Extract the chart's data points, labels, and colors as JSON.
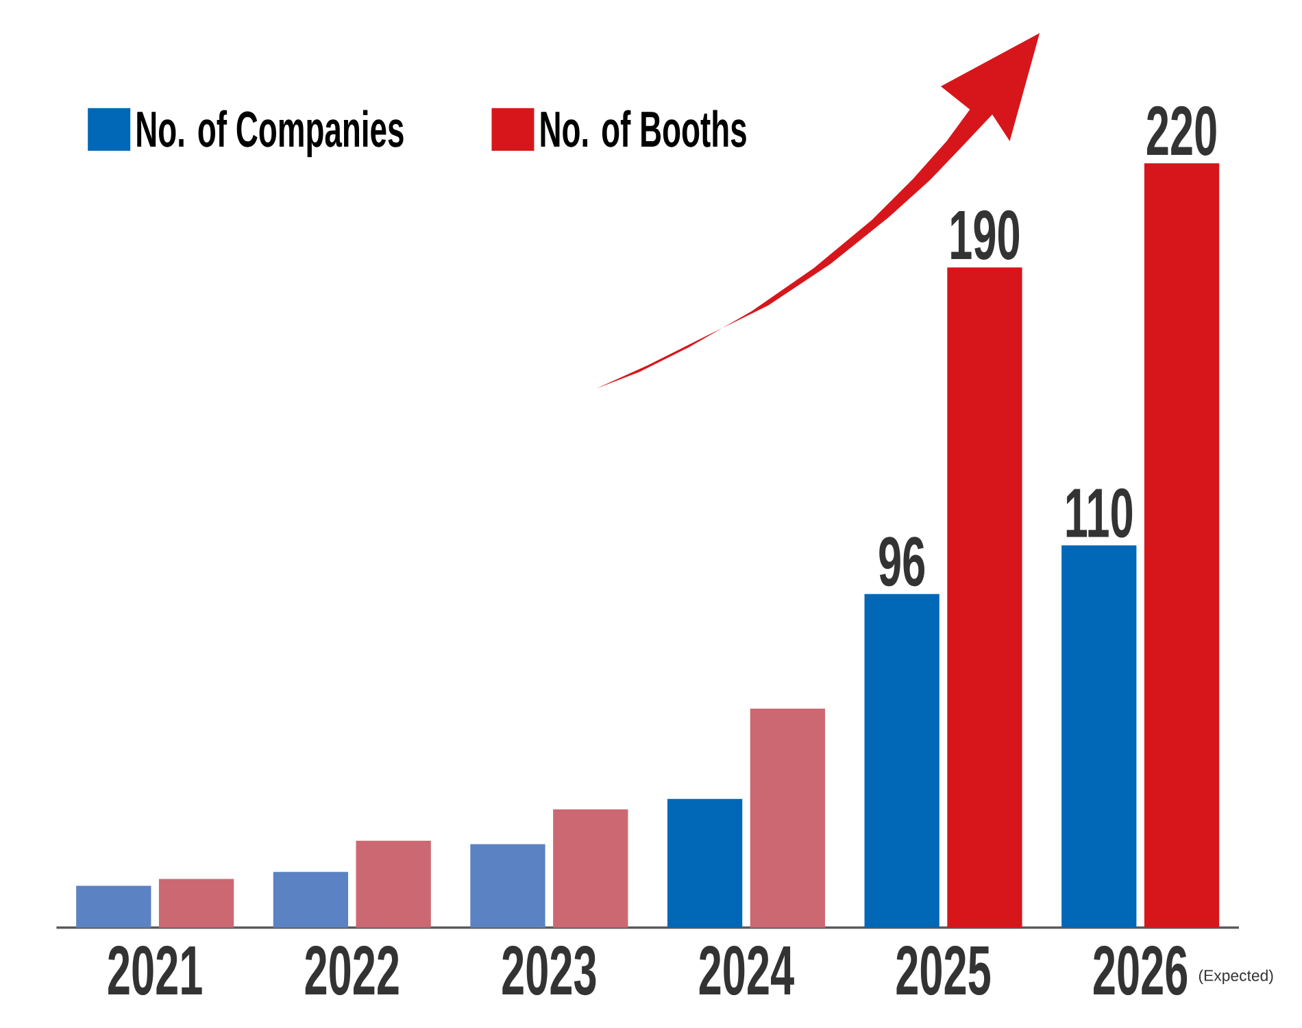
{
  "chart_data": {
    "type": "bar",
    "categories": [
      "2021",
      "2022",
      "2023",
      "2024",
      "2025",
      "2026"
    ],
    "series": [
      {
        "name": "No. of Companies",
        "color": "#0068b7",
        "colors": [
          "#5b82c3",
          "#5b82c3",
          "#5b82c3",
          "#0068b7",
          "#0068b7",
          "#0068b7"
        ],
        "values": [
          12,
          16,
          24,
          37,
          96,
          110
        ],
        "value_labels": [
          null,
          null,
          null,
          null,
          "96",
          "110"
        ]
      },
      {
        "name": "No. of Booths",
        "color": "#d7161b",
        "colors": [
          "#cc6872",
          "#cc6872",
          "#cc6872",
          "#cc6872",
          "#d7161b",
          "#d7161b"
        ],
        "values": [
          14,
          25,
          34,
          63,
          190,
          220
        ],
        "value_labels": [
          null,
          null,
          null,
          null,
          "190",
          "220"
        ]
      }
    ],
    "legend": "top left",
    "annotations": [
      "(Expected)"
    ]
  }
}
